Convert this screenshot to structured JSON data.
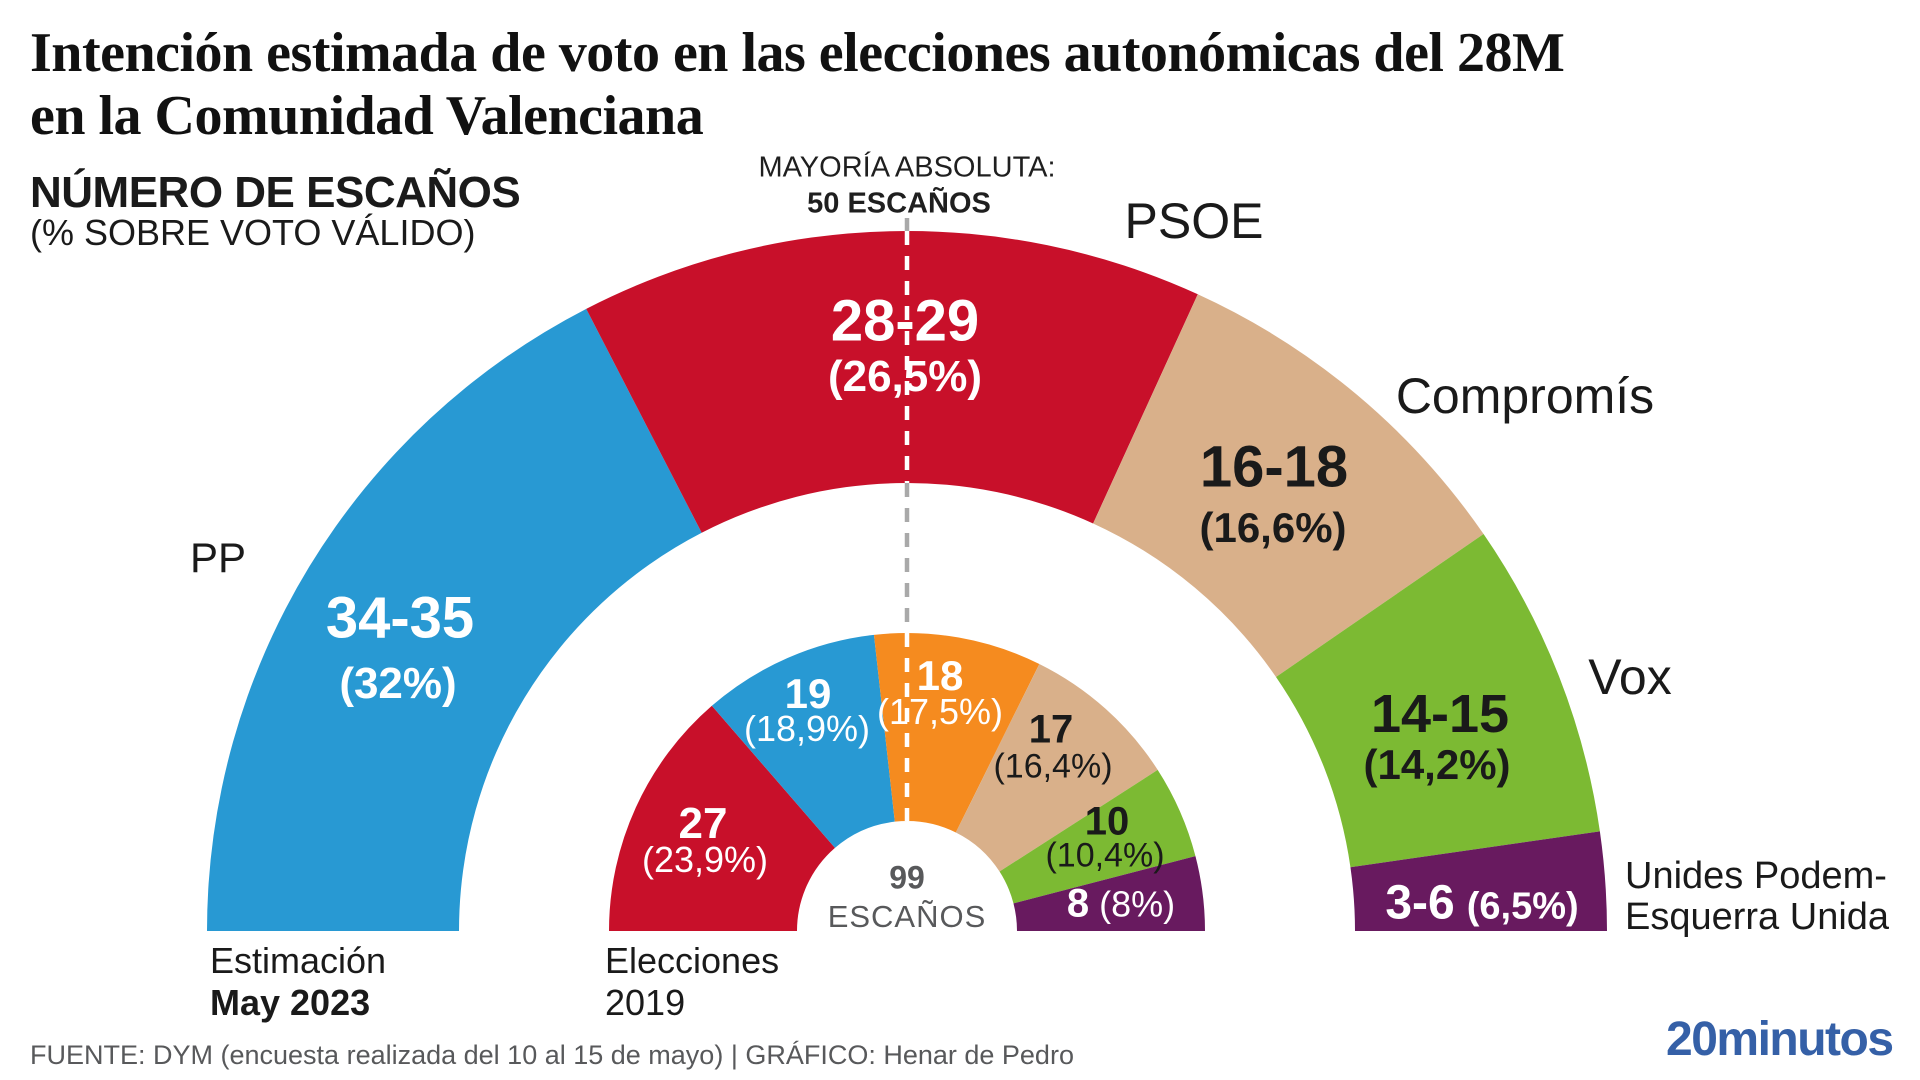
{
  "header": {
    "title": "Intención estimada de voto en las elecciones autonómicas del 28M\nen la Comunidad Valenciana",
    "subtitle_bold": "NÚMERO DE ESCAÑOS",
    "subtitle_normal": "(% SOBRE VOTO VÁLIDO)"
  },
  "majority": {
    "line1": "MAYORÍA ABSOLUTA:",
    "line2": "50 ESCAÑOS"
  },
  "center": {
    "value": "99",
    "label": "ESCAÑOS"
  },
  "ring_axis_labels": {
    "outer_line1": "Estimación",
    "outer_line2": "May 2023",
    "inner_line1": "Elecciones",
    "inner_line2": "2019"
  },
  "party_display": {
    "up_two_lines": "Unides Podem-\nEsquerra Unida"
  },
  "footer": {
    "credits": "FUENTE: DYM (encuesta realizada del 10 al 15 de mayo)  |  GRÁFICO: Henar de Pedro",
    "logo": "20minutos",
    "logo_color": "#3560a7"
  },
  "chart_data": {
    "type": "hemicycle",
    "total_seats": 99,
    "majority_seats": 50,
    "dashed_line_colors": {
      "over_white": "#a9a9a9",
      "over_ring": "#ffffff"
    },
    "rings": [
      {
        "name": "Estimación May 2023",
        "segments": [
          {
            "party": "PP",
            "seats_label": "34-35",
            "seats": 34.5,
            "pct_label": "(32%)",
            "pct": 32,
            "color": "#2899d3",
            "label_color": "#ffffff"
          },
          {
            "party": "PSOE",
            "seats_label": "28-29",
            "seats": 28.5,
            "pct_label": "(26,5%)",
            "pct": 26.5,
            "color": "#c8102a",
            "label_color": "#ffffff"
          },
          {
            "party": "Compromís",
            "seats_label": "16-18",
            "seats": 17,
            "pct_label": "(16,6%)",
            "pct": 16.6,
            "color": "#d9b08a",
            "label_color": "#1a1a1a"
          },
          {
            "party": "Vox",
            "seats_label": "14-15",
            "seats": 14.5,
            "pct_label": "(14,2%)",
            "pct": 14.2,
            "color": "#7cba33",
            "label_color": "#1a1a1a"
          },
          {
            "party": "Unides Podem-Esquerra Unida",
            "seats_label": "3-6",
            "seats": 4.5,
            "pct_label": "(6,5%)",
            "pct": 6.5,
            "color": "#681a5f",
            "label_color": "#ffffff"
          }
        ]
      },
      {
        "name": "Elecciones 2019",
        "segments": [
          {
            "seats_label": "27",
            "seats": 27,
            "pct_label": "(23,9%)",
            "pct": 23.9,
            "color": "#c8102a",
            "label_color": "#ffffff"
          },
          {
            "seats_label": "19",
            "seats": 19,
            "pct_label": "(18,9%)",
            "pct": 18.9,
            "color": "#2899d3",
            "label_color": "#ffffff"
          },
          {
            "seats_label": "18",
            "seats": 18,
            "pct_label": "(17,5%)",
            "pct": 17.5,
            "color": "#f58b1f",
            "label_color": "#ffffff"
          },
          {
            "seats_label": "17",
            "seats": 17,
            "pct_label": "(16,4%)",
            "pct": 16.4,
            "color": "#d9b08a",
            "label_color": "#1a1a1a"
          },
          {
            "seats_label": "10",
            "seats": 10,
            "pct_label": "(10,4%)",
            "pct": 10.4,
            "color": "#7cba33",
            "label_color": "#1a1a1a"
          },
          {
            "seats_label": "8",
            "seats": 8,
            "pct_label": "(8%)",
            "pct": 8,
            "color": "#681a5f",
            "label_color": "#ffffff"
          }
        ]
      }
    ]
  }
}
